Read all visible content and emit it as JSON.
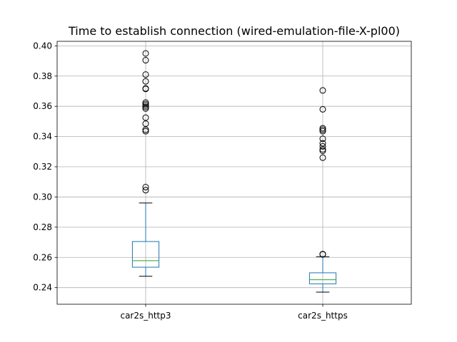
{
  "chart_data": {
    "type": "box",
    "title": "Time to establish connection (wired-emulation-file-X-pl00)",
    "xlabel": "",
    "ylabel": "",
    "categories": [
      "car2s_http3",
      "car2s_https"
    ],
    "ylim": [
      0.229,
      0.403
    ],
    "yticks": [
      "0.24",
      "0.26",
      "0.28",
      "0.30",
      "0.32",
      "0.34",
      "0.36",
      "0.38",
      "0.40"
    ],
    "grid": true,
    "boxes": [
      {
        "name": "car2s_http3",
        "whisker_low": 0.2475,
        "q1": 0.2535,
        "median": 0.2578,
        "q3": 0.2705,
        "whisker_high": 0.296,
        "outliers": [
          0.3045,
          0.3065,
          0.3435,
          0.3445,
          0.3485,
          0.3525,
          0.3585,
          0.3595,
          0.3605,
          0.3615,
          0.3625,
          0.3715,
          0.3718,
          0.3765,
          0.381,
          0.3905,
          0.395
        ]
      },
      {
        "name": "car2s_https",
        "whisker_low": 0.237,
        "q1": 0.2425,
        "median": 0.2452,
        "q3": 0.2498,
        "whisker_high": 0.2605,
        "outliers": [
          0.262,
          0.2622,
          0.326,
          0.3305,
          0.3315,
          0.3335,
          0.3355,
          0.3385,
          0.3435,
          0.3445,
          0.3455,
          0.358,
          0.3705
        ]
      }
    ],
    "colors": {
      "box": "#1f77b4",
      "median": "#2ca02c",
      "whisker": "#000000",
      "outlier": "#000000",
      "grid": "#b0b0b0",
      "axes": "#000000"
    }
  }
}
